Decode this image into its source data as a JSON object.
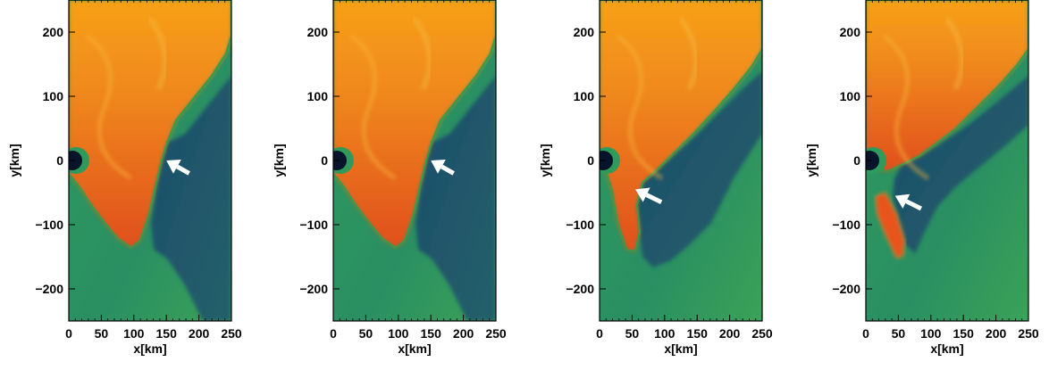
{
  "chart_data": [
    {
      "type": "heatmap",
      "xlabel": "x[km]",
      "ylabel": "y[km]",
      "xlim": [
        0,
        250
      ],
      "ylim": [
        -250,
        250
      ],
      "xticks": [
        "0",
        "50",
        "100",
        "150",
        "200",
        "250"
      ],
      "yticks": [
        "200",
        "100",
        "0",
        "−100",
        "−200"
      ],
      "arrow": {
        "tip": [
          150,
          0
        ],
        "tail": [
          185,
          -20
        ]
      },
      "grid": false,
      "colors": {
        "hot": "#e8541a",
        "warm": "#f7a018",
        "cold": "#1f4f66",
        "mid": "#2e9a5c"
      }
    },
    {
      "type": "heatmap",
      "xlabel": "x[km]",
      "ylabel": "y[km]",
      "xlim": [
        0,
        250
      ],
      "ylim": [
        -250,
        250
      ],
      "xticks": [
        "0",
        "50",
        "100",
        "150",
        "200",
        "250"
      ],
      "yticks": [
        "200",
        "100",
        "0",
        "−100",
        "−200"
      ],
      "arrow": {
        "tip": [
          150,
          0
        ],
        "tail": [
          185,
          -20
        ]
      },
      "grid": false,
      "colors": {
        "hot": "#e8541a",
        "warm": "#f7a018",
        "cold": "#1f4f66",
        "mid": "#2e9a5c"
      }
    },
    {
      "type": "heatmap",
      "xlabel": "x[km]",
      "ylabel": "y[km]",
      "xlim": [
        0,
        250
      ],
      "ylim": [
        -250,
        250
      ],
      "xticks": [
        "0",
        "50",
        "100",
        "150",
        "200",
        "250"
      ],
      "yticks": [
        "200",
        "100",
        "0",
        "−100",
        "−200"
      ],
      "arrow": {
        "tip": [
          55,
          -45
        ],
        "tail": [
          95,
          -65
        ]
      },
      "grid": false,
      "colors": {
        "hot": "#e8541a",
        "warm": "#f7a018",
        "cold": "#1f4f66",
        "mid": "#2e9a5c"
      }
    },
    {
      "type": "heatmap",
      "xlabel": "x[km]",
      "ylabel": "y[km]",
      "xlim": [
        0,
        250
      ],
      "ylim": [
        -250,
        250
      ],
      "xticks": [
        "0",
        "50",
        "100",
        "150",
        "200",
        "250"
      ],
      "yticks": [
        "200",
        "100",
        "0",
        "−100",
        "−200"
      ],
      "arrow": {
        "tip": [
          45,
          -55
        ],
        "tail": [
          85,
          -75
        ]
      },
      "grid": false,
      "colors": {
        "hot": "#e8541a",
        "warm": "#f7a018",
        "cold": "#1f4f66",
        "mid": "#2e9a5c"
      }
    }
  ]
}
